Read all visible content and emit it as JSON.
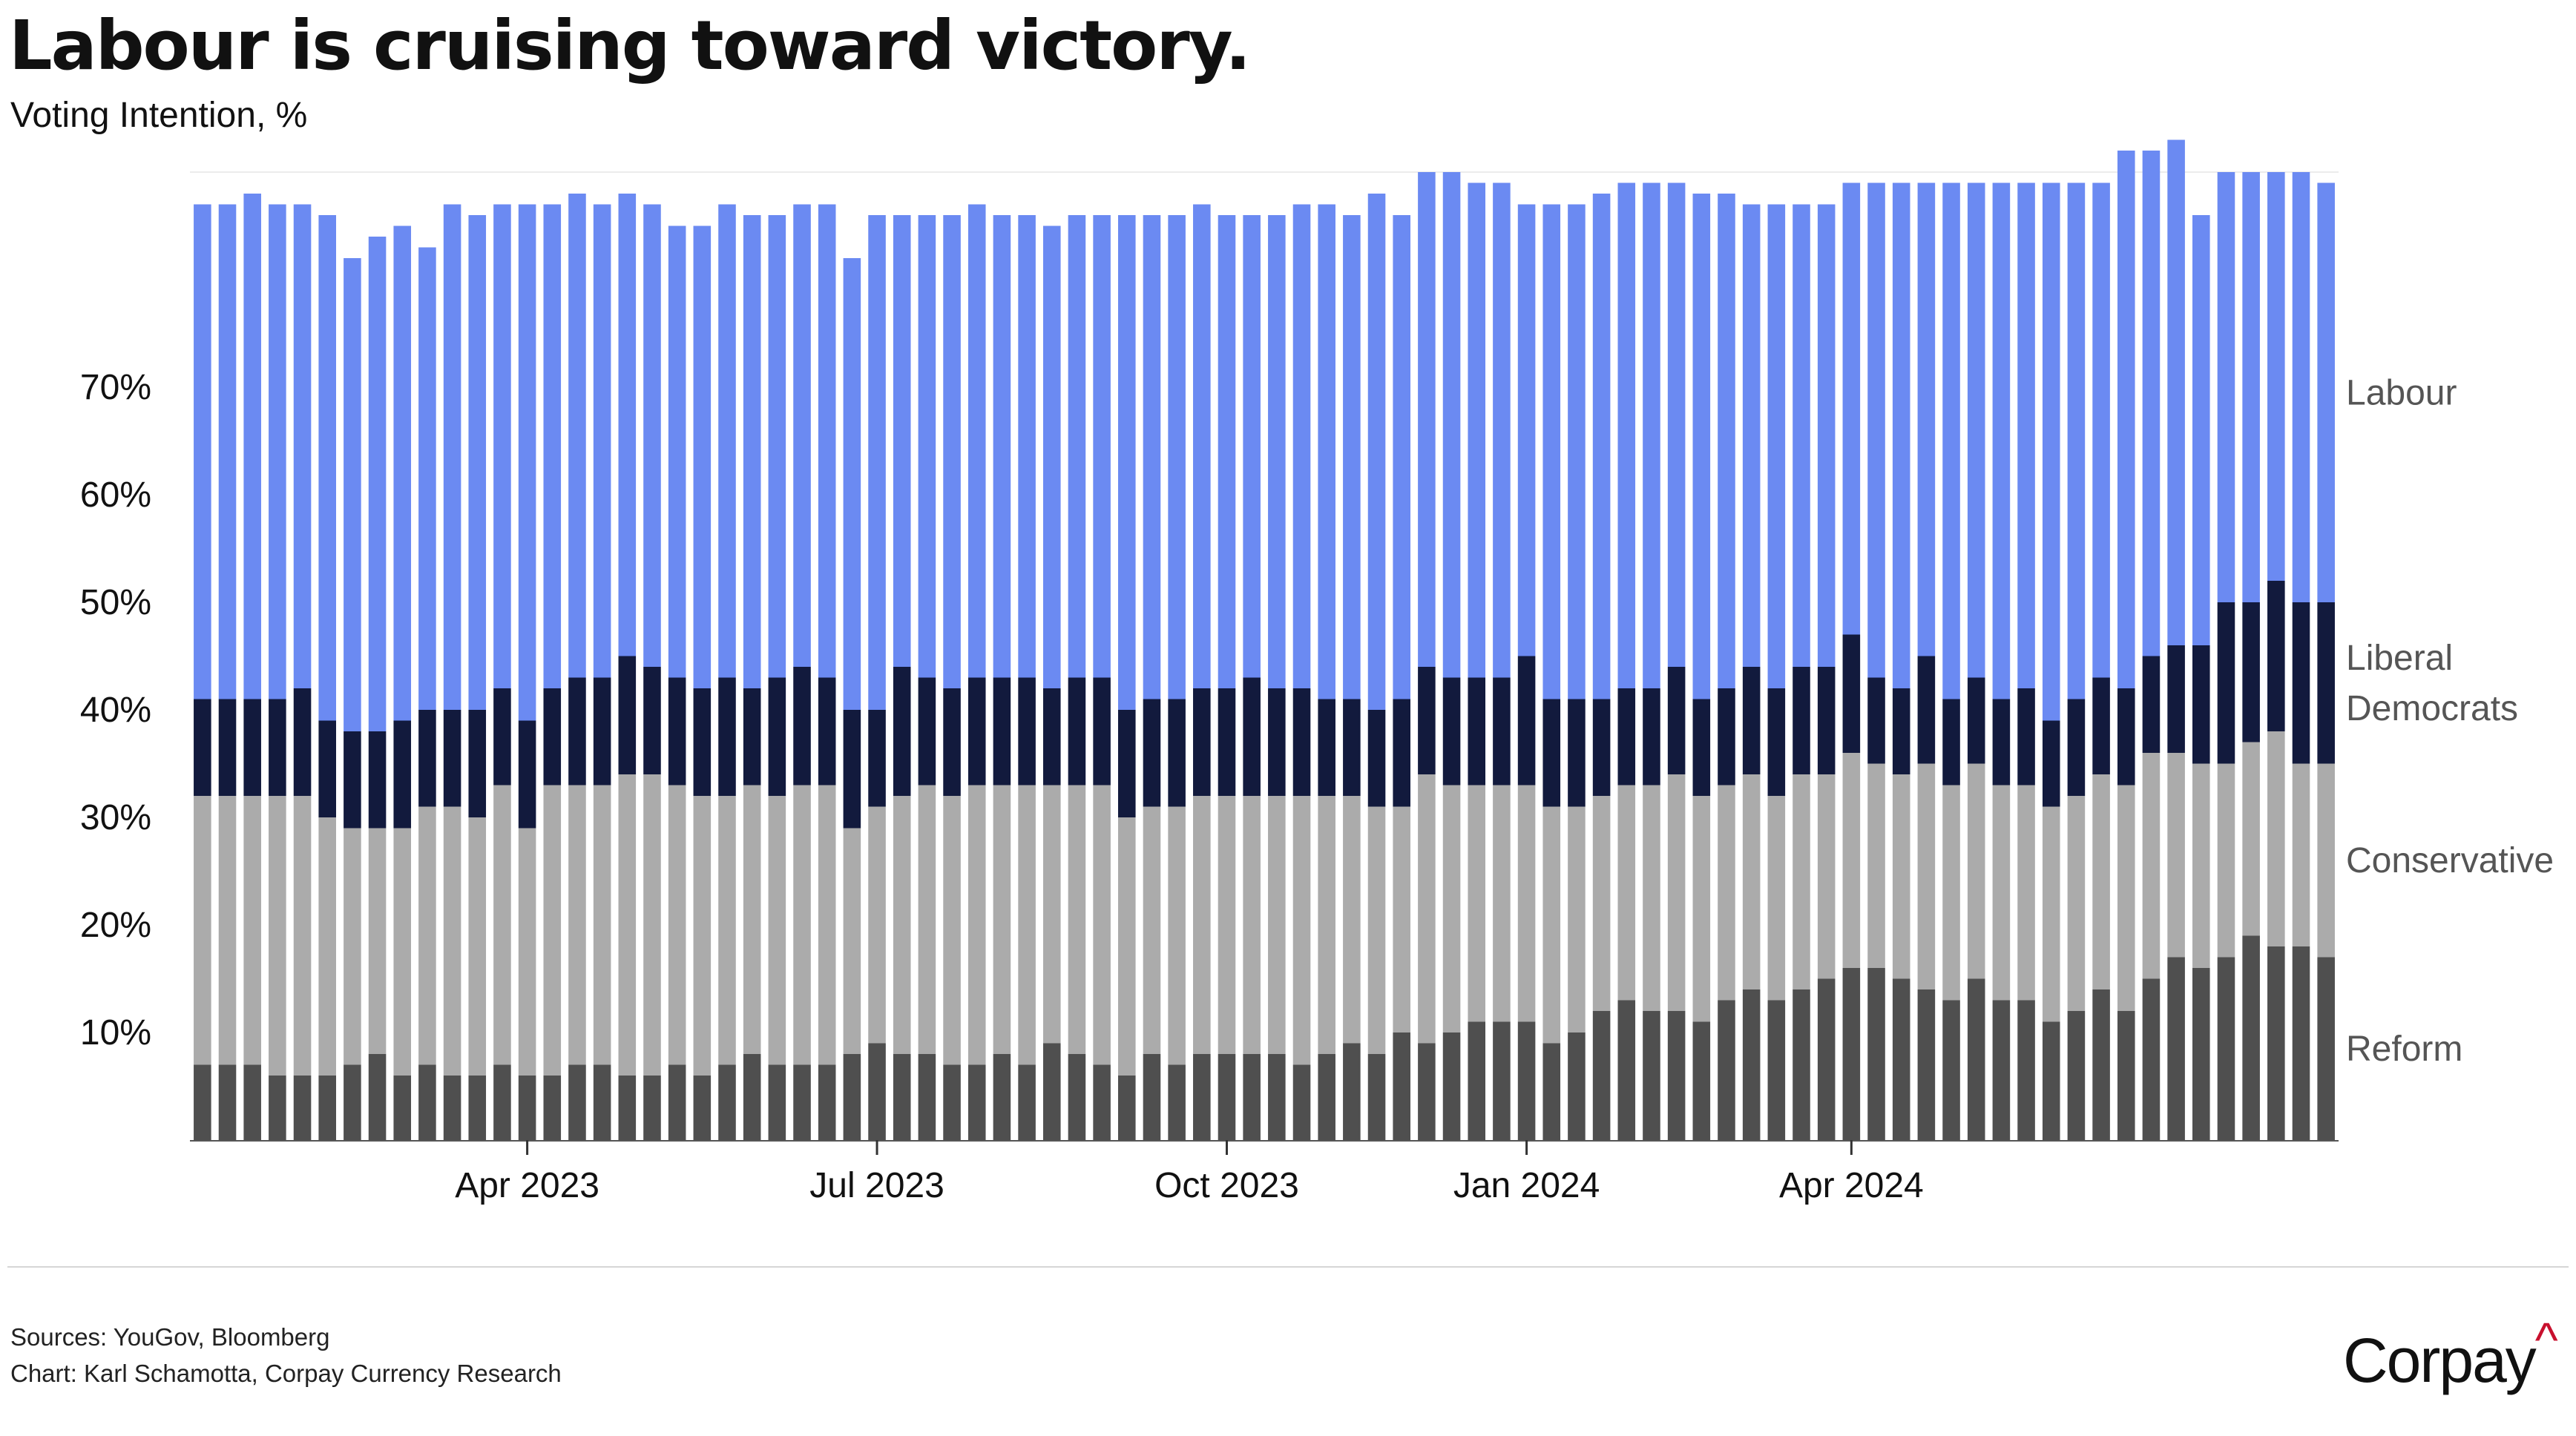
{
  "header": {
    "title": "Labour is cruising toward victory.",
    "subtitle": "Voting Intention, %"
  },
  "footer": {
    "sources": "Sources: YouGov, Bloomberg",
    "credit": "Chart: Karl Schamotta, Corpay Currency Research",
    "brand": "Corpay",
    "brand_mark": "^"
  },
  "colors": {
    "Reform": "#4f4f4f",
    "Conservative": "#ababab",
    "Liberal Democrats": "#121a3d",
    "Labour": "#6b8af2",
    "brand_mark": "#c8102e"
  },
  "chart_data": {
    "type": "bar",
    "stacked": true,
    "title": "Labour is cruising toward victory.",
    "subtitle": "Voting Intention, %",
    "ylim": [
      0,
      90
    ],
    "y_ticks": [
      {
        "value": 10,
        "label": "10%"
      },
      {
        "value": 20,
        "label": "20%"
      },
      {
        "value": 30,
        "label": "30%"
      },
      {
        "value": 40,
        "label": "40%"
      },
      {
        "value": 50,
        "label": "50%"
      },
      {
        "value": 60,
        "label": "60%"
      },
      {
        "value": 70,
        "label": "70%"
      }
    ],
    "x_ticks": [
      {
        "index": 13,
        "label": "Apr 2023"
      },
      {
        "index": 27,
        "label": "Jul 2023"
      },
      {
        "index": 41,
        "label": "Oct 2023"
      },
      {
        "index": 53,
        "label": "Jan 2024"
      },
      {
        "index": 66,
        "label": "Apr 2024"
      }
    ],
    "gridlines": false,
    "legend": "direct labels at right end of bars",
    "series": [
      {
        "name": "Reform",
        "values": [
          7,
          7,
          7,
          6,
          6,
          6,
          7,
          8,
          6,
          7,
          6,
          6,
          7,
          6,
          6,
          7,
          7,
          6,
          6,
          7,
          6,
          7,
          8,
          7,
          7,
          7,
          8,
          9,
          8,
          8,
          7,
          7,
          8,
          7,
          9,
          8,
          7,
          6,
          8,
          7,
          8,
          8,
          8,
          8,
          7,
          8,
          9,
          8,
          10,
          9,
          10,
          11,
          11,
          11,
          9,
          10,
          12,
          13,
          12,
          12,
          11,
          13,
          14,
          13,
          14,
          15,
          16,
          16,
          15,
          14,
          13,
          15,
          13,
          13,
          11,
          12,
          14,
          12,
          15,
          17,
          16,
          17,
          19,
          18,
          18,
          17
        ]
      },
      {
        "name": "Conservative",
        "values": [
          25,
          25,
          25,
          26,
          26,
          24,
          22,
          21,
          23,
          24,
          25,
          24,
          26,
          23,
          27,
          26,
          26,
          28,
          28,
          26,
          26,
          25,
          25,
          25,
          26,
          26,
          21,
          22,
          24,
          25,
          25,
          26,
          25,
          26,
          24,
          25,
          26,
          24,
          23,
          24,
          24,
          24,
          24,
          24,
          25,
          24,
          23,
          23,
          21,
          25,
          23,
          22,
          22,
          22,
          22,
          21,
          20,
          20,
          21,
          22,
          21,
          20,
          20,
          19,
          20,
          19,
          20,
          19,
          19,
          21,
          20,
          20,
          20,
          20,
          20,
          20,
          20,
          21,
          21,
          19,
          19,
          18,
          18,
          20,
          17,
          18
        ]
      },
      {
        "name": "Liberal Democrats",
        "values": [
          9,
          9,
          9,
          9,
          10,
          9,
          9,
          9,
          10,
          9,
          9,
          10,
          9,
          10,
          9,
          10,
          10,
          11,
          10,
          10,
          10,
          11,
          9,
          11,
          11,
          10,
          11,
          9,
          12,
          10,
          10,
          10,
          10,
          10,
          9,
          10,
          10,
          10,
          10,
          10,
          10,
          10,
          11,
          10,
          10,
          9,
          9,
          9,
          10,
          10,
          10,
          10,
          10,
          12,
          10,
          10,
          9,
          9,
          9,
          10,
          9,
          9,
          10,
          10,
          10,
          10,
          11,
          8,
          8,
          10,
          8,
          8,
          8,
          9,
          8,
          9,
          9,
          9,
          9,
          10,
          11,
          15,
          13,
          14,
          15,
          15
        ]
      },
      {
        "name": "Labour",
        "values": [
          46,
          46,
          47,
          46,
          45,
          47,
          44,
          46,
          46,
          43,
          47,
          46,
          45,
          48,
          45,
          45,
          44,
          43,
          43,
          42,
          43,
          44,
          44,
          43,
          43,
          44,
          42,
          46,
          42,
          43,
          44,
          44,
          43,
          43,
          43,
          43,
          43,
          46,
          45,
          45,
          45,
          44,
          43,
          44,
          45,
          46,
          45,
          48,
          45,
          46,
          47,
          46,
          46,
          42,
          46,
          46,
          47,
          47,
          47,
          45,
          47,
          46,
          43,
          45,
          43,
          43,
          42,
          46,
          47,
          44,
          48,
          46,
          48,
          47,
          50,
          48,
          46,
          50,
          47,
          47,
          40,
          40,
          40,
          38,
          40,
          39
        ]
      }
    ]
  }
}
